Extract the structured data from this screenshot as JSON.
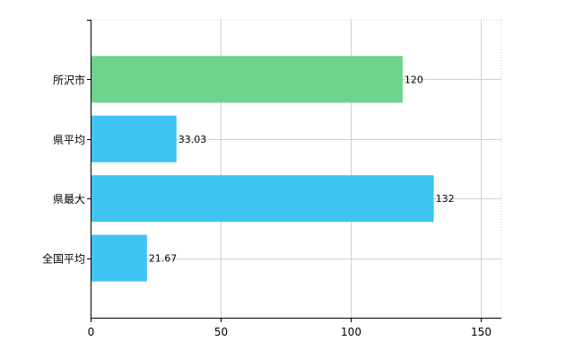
{
  "chart_data": {
    "type": "bar",
    "orientation": "horizontal",
    "categories": [
      "所沢市",
      "県平均",
      "県最大",
      "全国平均"
    ],
    "values": [
      120,
      33.03,
      132,
      21.67
    ],
    "value_labels": [
      "120",
      "33.03",
      "132",
      "21.67"
    ],
    "bar_colors": [
      "#6cd28c",
      "#3fc4f4",
      "#3fc4f4",
      "#3fc4f4"
    ],
    "title": "",
    "xlabel": "",
    "ylabel": "",
    "xlim": [
      0,
      158
    ],
    "xticks": [
      0,
      50,
      100,
      150
    ],
    "xtick_labels": [
      "0",
      "50",
      "100",
      "150"
    ],
    "grid": true,
    "grid_style": "dotted",
    "legend": "none"
  }
}
